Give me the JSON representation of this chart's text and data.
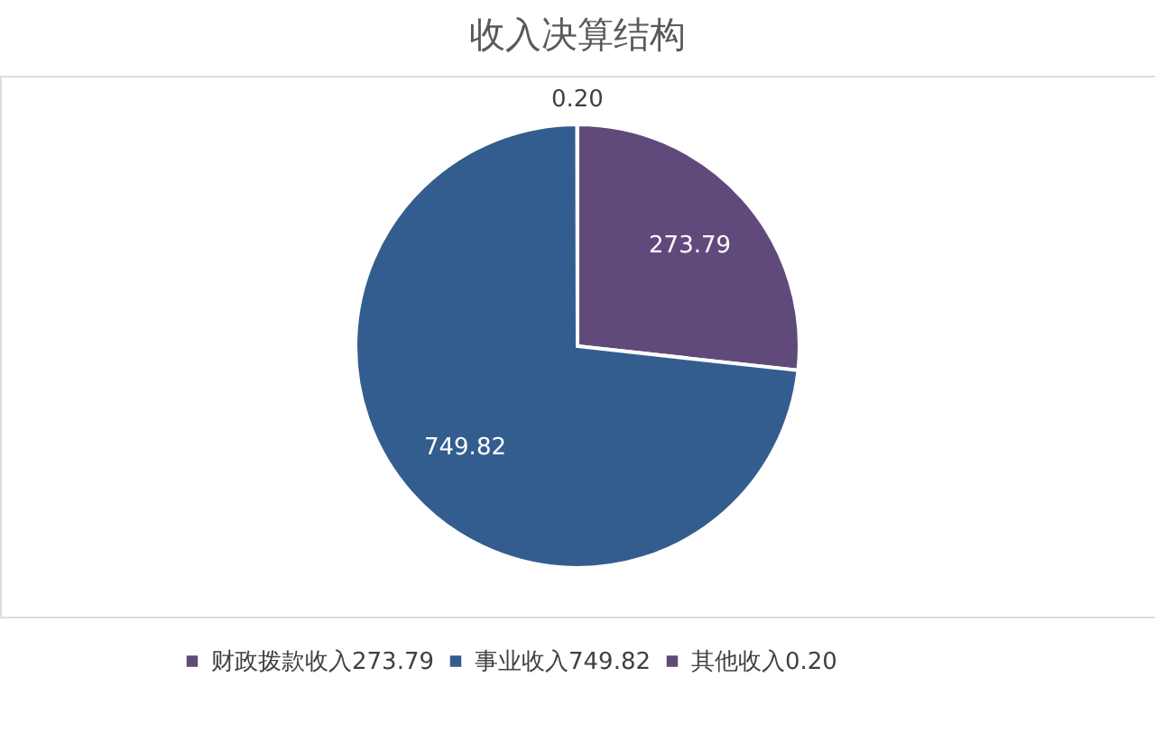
{
  "chart_data": {
    "type": "pie",
    "title": "收入决算结构",
    "categories": [
      "财政拨款收入273.79",
      "事业收入749.82",
      "其他收入0.20"
    ],
    "values": [
      273.79,
      749.82,
      0.2
    ],
    "colors": [
      "#604a7b",
      "#335d8e",
      "#604a7b"
    ],
    "value_labels": [
      "273.79",
      "749.82",
      "0.20"
    ],
    "legend": "bottom"
  }
}
